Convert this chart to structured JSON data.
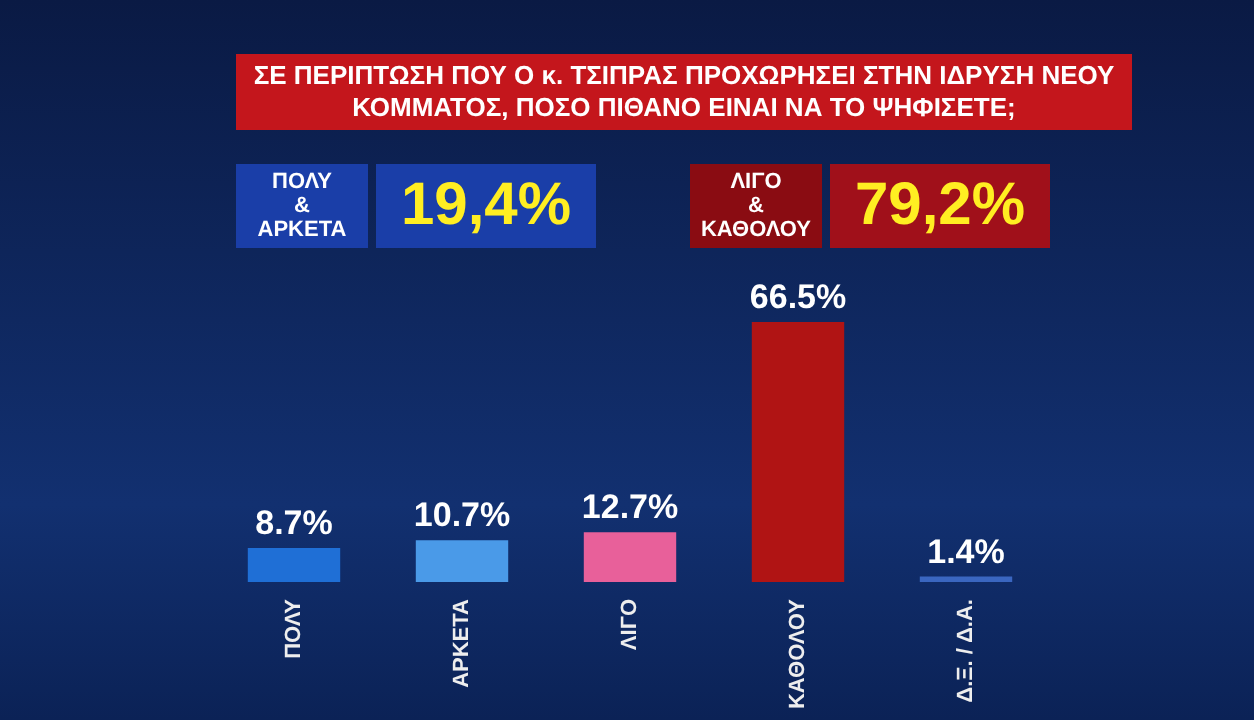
{
  "chart_data": {
    "type": "bar",
    "title": "ΣΕ ΠΕΡΙΠΤΩΣΗ ΠΟΥ Ο κ. ΤΣΙΠΡΑΣ ΠΡΟΧΩΡΗΣΕΙ ΣΤΗΝ ΙΔΡΥΣΗ ΝΕΟΥ ΚΟΜΜΑΤΟΣ, ΠΟΣΟ ΠΙΘΑΝΟ ΕΙΝΑΙ ΝΑ ΤΟ ΨΗΦΙΣΕΤΕ;",
    "categories": [
      "ΠΟΛΥ",
      "ΑΡΚΕΤΑ",
      "ΛΙΓΟ",
      "ΚΑΘΟΛΟΥ",
      "Δ.Ξ. / Δ.Α."
    ],
    "values": [
      8.7,
      10.7,
      12.7,
      66.5,
      1.4
    ],
    "colors": [
      "#1f6fd6",
      "#4a9ae8",
      "#e8609a",
      "#b01414",
      "#3a66c0"
    ],
    "value_labels": [
      "8.7%",
      "10.7%",
      "12.7%",
      "66.5%",
      "1.4%"
    ],
    "annotations": [
      "ΠΟΛΥ & ΑΡΚΕΤΑ",
      "19,4%",
      "ΛΙΓΟ & ΚΑΘΟΛΟΥ",
      "79,2%"
    ]
  }
}
